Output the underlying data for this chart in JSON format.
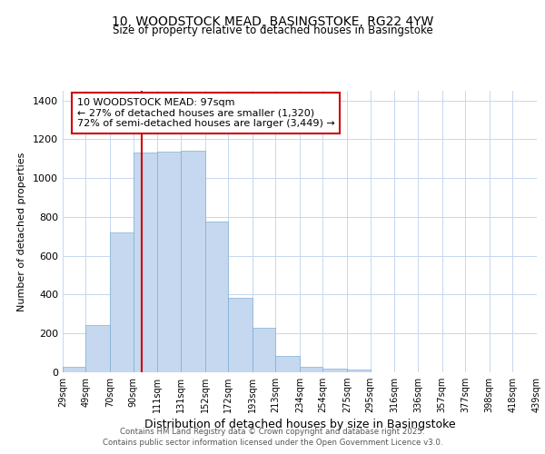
{
  "title_line1": "10, WOODSTOCK MEAD, BASINGSTOKE, RG22 4YW",
  "title_line2": "Size of property relative to detached houses in Basingstoke",
  "xlabel": "Distribution of detached houses by size in Basingstoke",
  "ylabel": "Number of detached properties",
  "footnote1": "Contains HM Land Registry data © Crown copyright and database right 2025.",
  "footnote2": "Contains public sector information licensed under the Open Government Licence v3.0.",
  "property_label": "10 WOODSTOCK MEAD: 97sqm",
  "annotation_line1": "← 27% of detached houses are smaller (1,320)",
  "annotation_line2": "72% of semi-detached houses are larger (3,449) →",
  "bar_edges": [
    29,
    49,
    70,
    90,
    111,
    131,
    152,
    172,
    193,
    213,
    234,
    254,
    275,
    295,
    316,
    336,
    357,
    377,
    398,
    418,
    439
  ],
  "bar_heights": [
    30,
    245,
    720,
    1130,
    1135,
    1140,
    775,
    385,
    230,
    85,
    30,
    20,
    15,
    0,
    0,
    0,
    0,
    0,
    0,
    0
  ],
  "bar_color": "#c5d8ef",
  "bar_edge_color": "#7fafd4",
  "vline_color": "#cc0000",
  "vline_x": 97,
  "annotation_box_edge_color": "#cc0000",
  "annotation_box_fill": "#ffffff",
  "ylim": [
    0,
    1450
  ],
  "yticks": [
    0,
    200,
    400,
    600,
    800,
    1000,
    1200,
    1400
  ],
  "background_color": "#ffffff",
  "grid_color": "#c5d8ef"
}
